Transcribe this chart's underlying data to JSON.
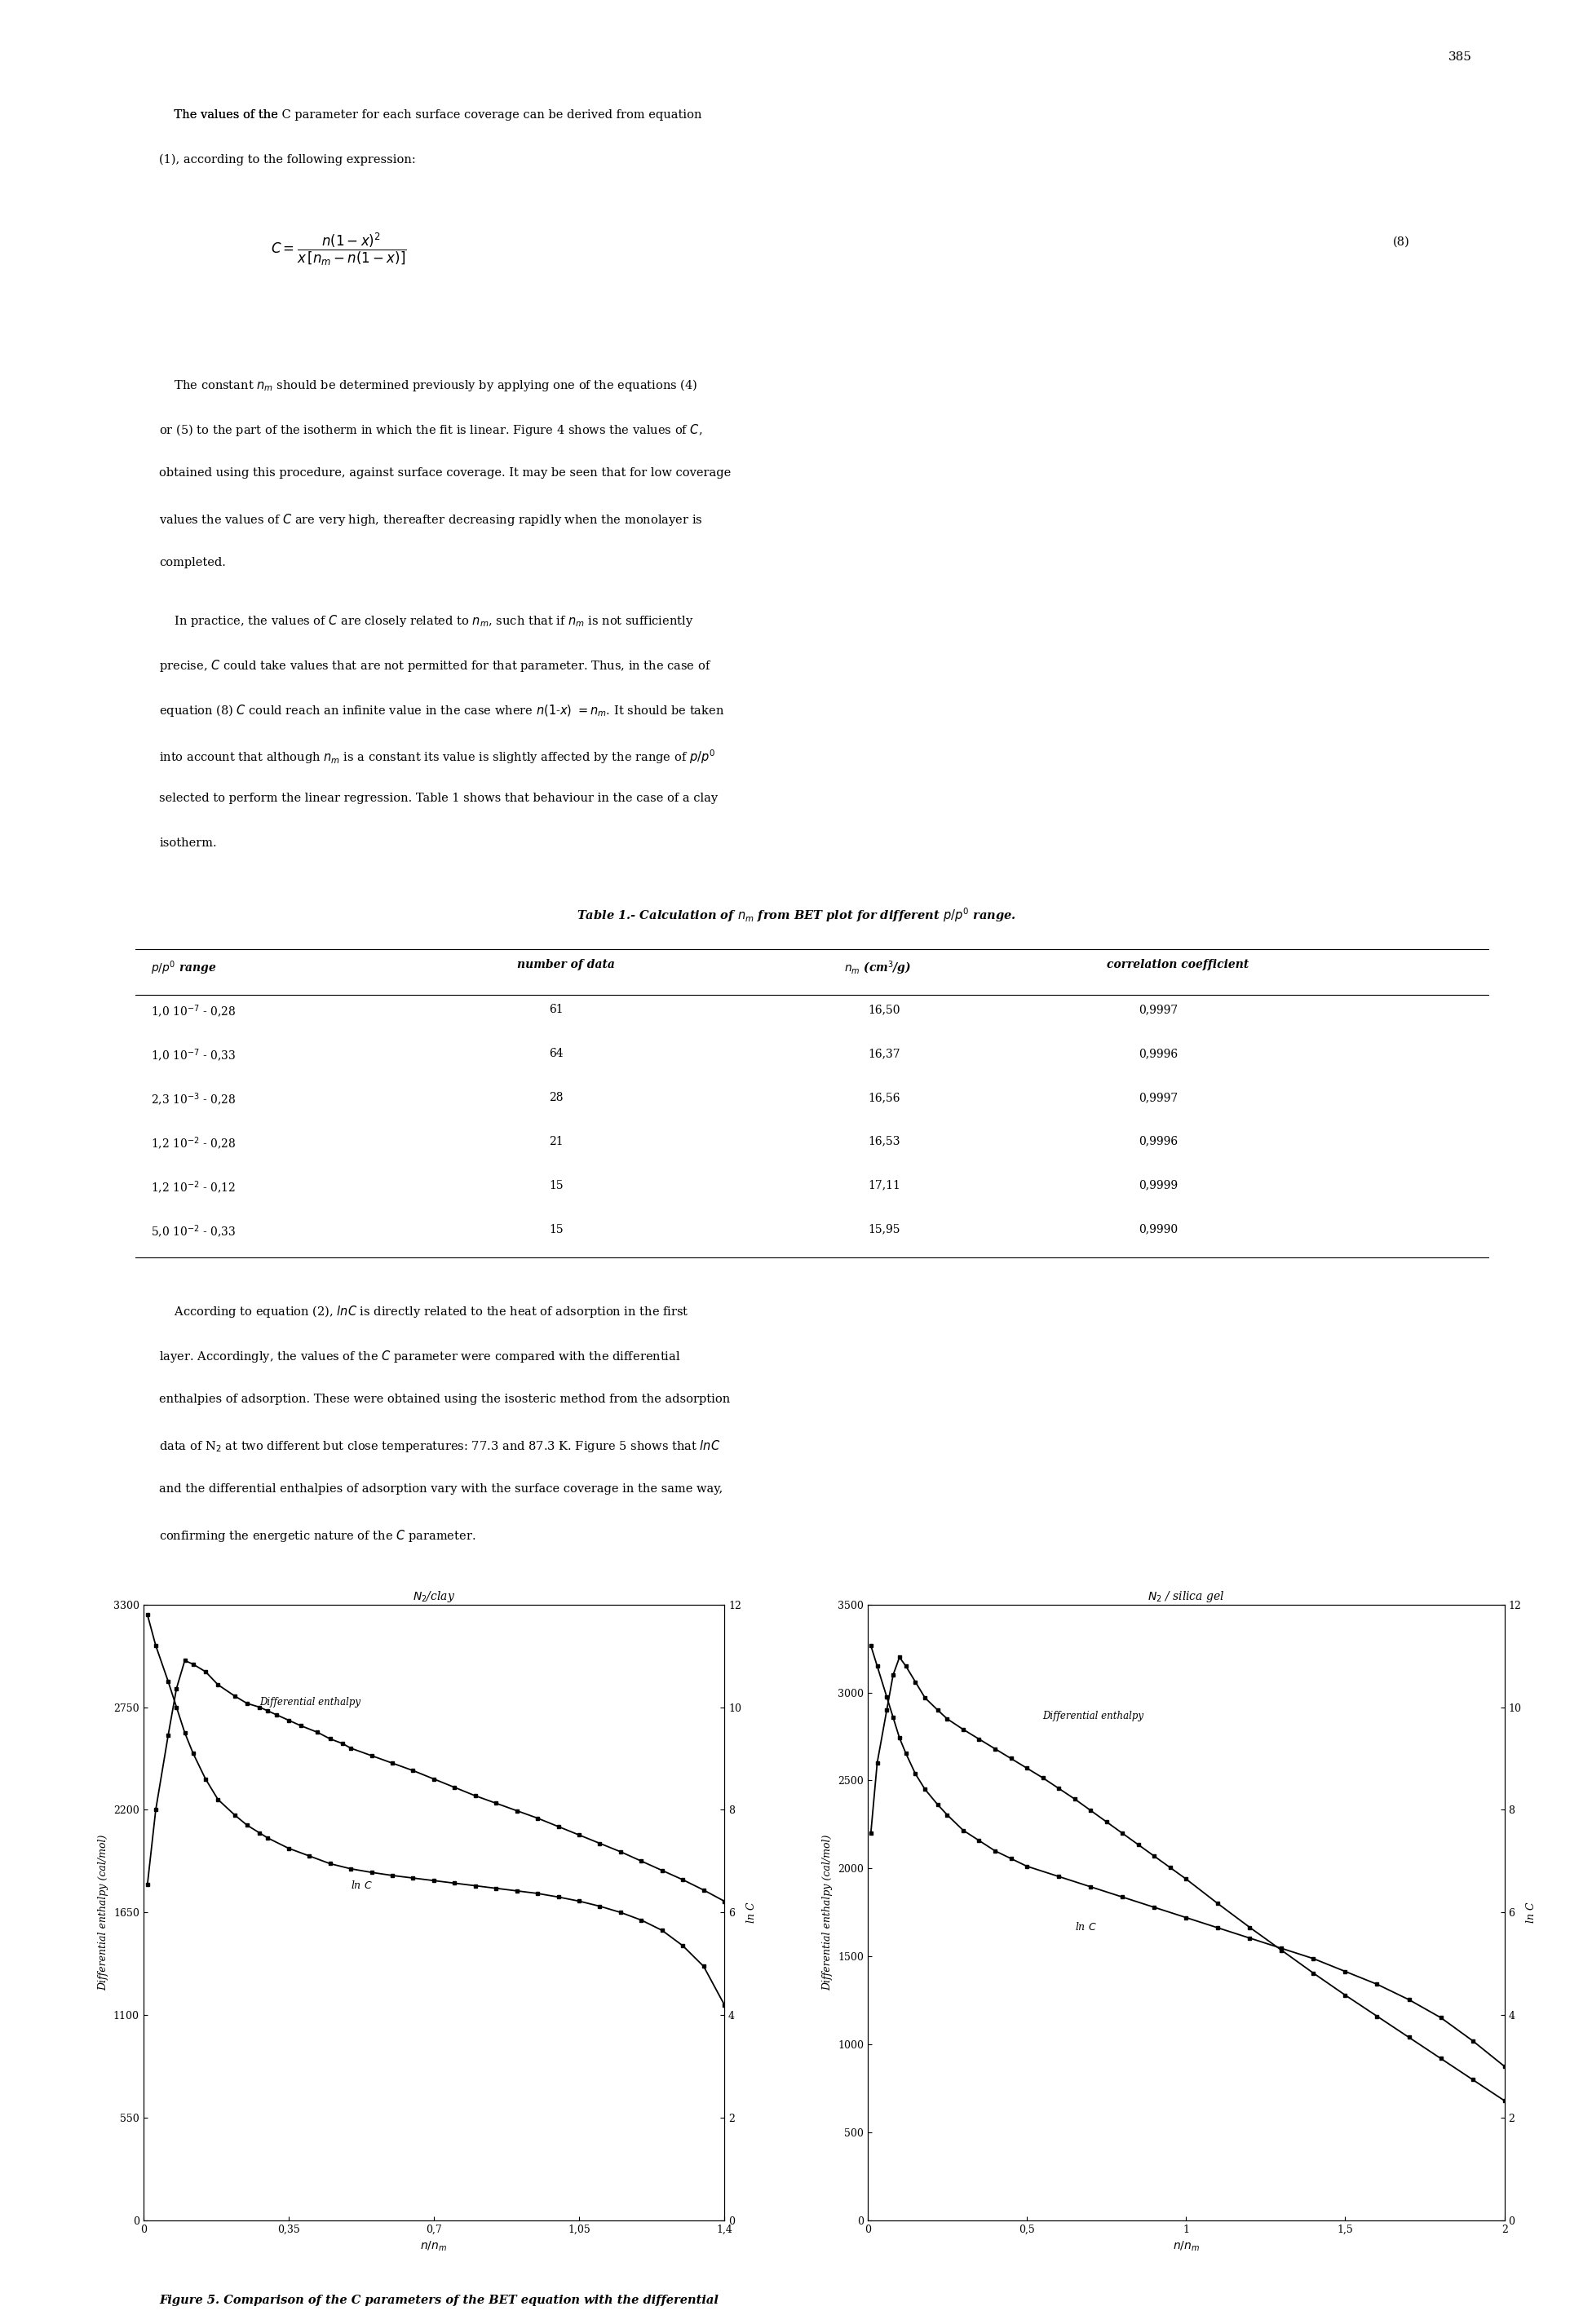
{
  "page_number": "385",
  "plot1": {
    "title": "N_2/clay",
    "ylim_left": [
      0,
      3300
    ],
    "ylim_right": [
      0,
      12
    ],
    "xlim": [
      0,
      1.4
    ],
    "yticks_left": [
      0,
      550,
      1100,
      1650,
      2200,
      2750,
      3300
    ],
    "yticks_right": [
      0,
      2,
      4,
      6,
      8,
      10,
      12
    ],
    "xticks": [
      0,
      0.35,
      0.7,
      1.05,
      1.4
    ],
    "xtick_labels": [
      "0",
      "0,35",
      "0,7",
      "1,05",
      "1,4"
    ],
    "enthalpy_data_x": [
      0.01,
      0.03,
      0.06,
      0.08,
      0.1,
      0.12,
      0.15,
      0.18,
      0.22,
      0.25,
      0.28,
      0.3,
      0.32,
      0.35,
      0.38,
      0.42,
      0.45,
      0.48,
      0.5,
      0.55,
      0.6,
      0.65,
      0.7,
      0.75,
      0.8,
      0.85,
      0.9,
      0.95,
      1.0,
      1.05,
      1.1,
      1.15,
      1.2,
      1.25,
      1.3,
      1.35,
      1.4
    ],
    "enthalpy_data_y": [
      1800,
      2200,
      2600,
      2850,
      3000,
      2980,
      2940,
      2870,
      2810,
      2770,
      2750,
      2730,
      2710,
      2680,
      2650,
      2615,
      2580,
      2555,
      2530,
      2490,
      2450,
      2410,
      2365,
      2320,
      2275,
      2235,
      2195,
      2155,
      2110,
      2065,
      2020,
      1975,
      1925,
      1875,
      1825,
      1770,
      1710
    ],
    "lnc_data_x": [
      0.01,
      0.03,
      0.06,
      0.08,
      0.1,
      0.12,
      0.15,
      0.18,
      0.22,
      0.25,
      0.28,
      0.3,
      0.35,
      0.4,
      0.45,
      0.5,
      0.55,
      0.6,
      0.65,
      0.7,
      0.75,
      0.8,
      0.85,
      0.9,
      0.95,
      1.0,
      1.05,
      1.1,
      1.15,
      1.2,
      1.25,
      1.3,
      1.35,
      1.4
    ],
    "lnc_data_y": [
      11.8,
      11.2,
      10.5,
      10.0,
      9.5,
      9.1,
      8.6,
      8.2,
      7.9,
      7.7,
      7.55,
      7.45,
      7.25,
      7.1,
      6.95,
      6.85,
      6.78,
      6.72,
      6.67,
      6.62,
      6.57,
      6.52,
      6.47,
      6.42,
      6.37,
      6.3,
      6.22,
      6.12,
      6.0,
      5.85,
      5.65,
      5.35,
      4.95,
      4.2
    ]
  },
  "plot2": {
    "title": "N_2 / silica gel",
    "ylim_left": [
      0,
      3500
    ],
    "ylim_right": [
      0,
      12
    ],
    "xlim": [
      0,
      2.0
    ],
    "yticks_left": [
      0,
      500,
      1000,
      1500,
      2000,
      2500,
      3000,
      3500
    ],
    "yticks_right": [
      0,
      2,
      4,
      6,
      8,
      10,
      12
    ],
    "xticks": [
      0,
      0.5,
      1.0,
      1.5,
      2.0
    ],
    "xtick_labels": [
      "0",
      "0,5",
      "1",
      "1,5",
      "2"
    ],
    "enthalpy_data_x": [
      0.01,
      0.03,
      0.06,
      0.08,
      0.1,
      0.12,
      0.15,
      0.18,
      0.22,
      0.25,
      0.3,
      0.35,
      0.4,
      0.45,
      0.5,
      0.55,
      0.6,
      0.65,
      0.7,
      0.75,
      0.8,
      0.85,
      0.9,
      0.95,
      1.0,
      1.1,
      1.2,
      1.3,
      1.4,
      1.5,
      1.6,
      1.7,
      1.8,
      1.9,
      2.0
    ],
    "enthalpy_data_y": [
      2200,
      2600,
      2900,
      3100,
      3200,
      3150,
      3060,
      2970,
      2900,
      2850,
      2790,
      2735,
      2680,
      2625,
      2570,
      2515,
      2455,
      2395,
      2330,
      2265,
      2200,
      2135,
      2070,
      2005,
      1940,
      1800,
      1665,
      1535,
      1405,
      1280,
      1160,
      1040,
      920,
      800,
      680
    ],
    "lnc_data_x": [
      0.01,
      0.03,
      0.06,
      0.08,
      0.1,
      0.12,
      0.15,
      0.18,
      0.22,
      0.25,
      0.3,
      0.35,
      0.4,
      0.45,
      0.5,
      0.6,
      0.7,
      0.8,
      0.9,
      1.0,
      1.1,
      1.2,
      1.3,
      1.4,
      1.5,
      1.6,
      1.7,
      1.8,
      1.9,
      2.0
    ],
    "lnc_data_y": [
      11.2,
      10.8,
      10.2,
      9.8,
      9.4,
      9.1,
      8.7,
      8.4,
      8.1,
      7.9,
      7.6,
      7.4,
      7.2,
      7.05,
      6.9,
      6.7,
      6.5,
      6.3,
      6.1,
      5.9,
      5.7,
      5.5,
      5.3,
      5.1,
      4.85,
      4.6,
      4.3,
      3.95,
      3.5,
      3.0
    ]
  }
}
